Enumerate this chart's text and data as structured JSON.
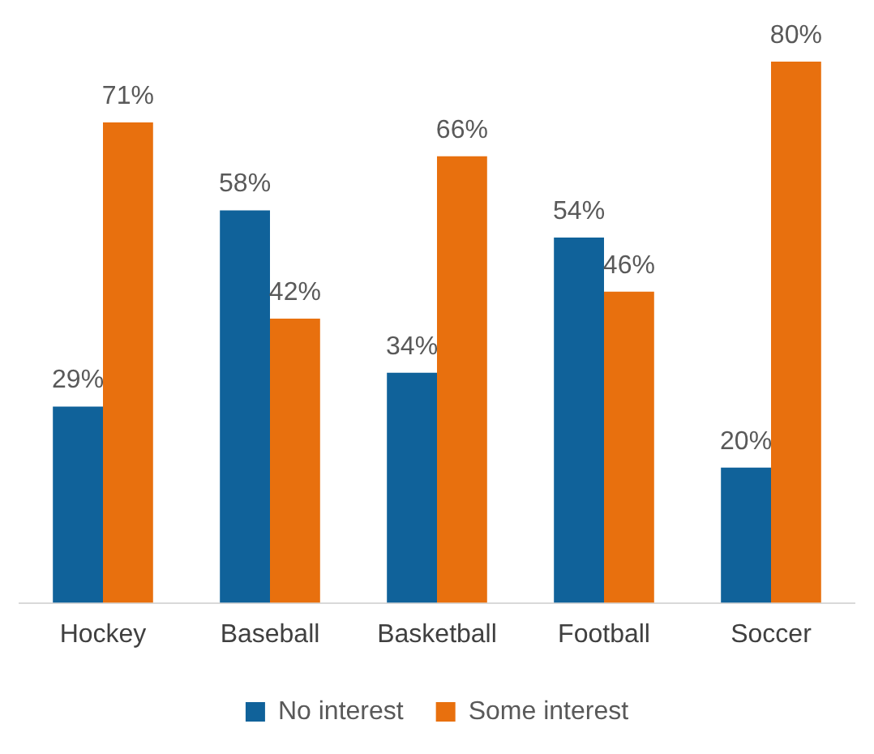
{
  "chart_data": {
    "type": "bar",
    "categories": [
      "Hockey",
      "Baseball",
      "Basketball",
      "Football",
      "Soccer"
    ],
    "series": [
      {
        "name": "No interest",
        "color": "#10629a",
        "values": [
          29,
          58,
          34,
          54,
          20
        ],
        "value_labels": [
          "29%",
          "58%",
          "34%",
          "54%",
          "20%"
        ]
      },
      {
        "name": "Some interest",
        "color": "#e8700e",
        "values": [
          71,
          42,
          66,
          46,
          80
        ],
        "value_labels": [
          "71%",
          "42%",
          "66%",
          "46%",
          "80%"
        ]
      }
    ],
    "legend": "bottom",
    "grid": false
  }
}
